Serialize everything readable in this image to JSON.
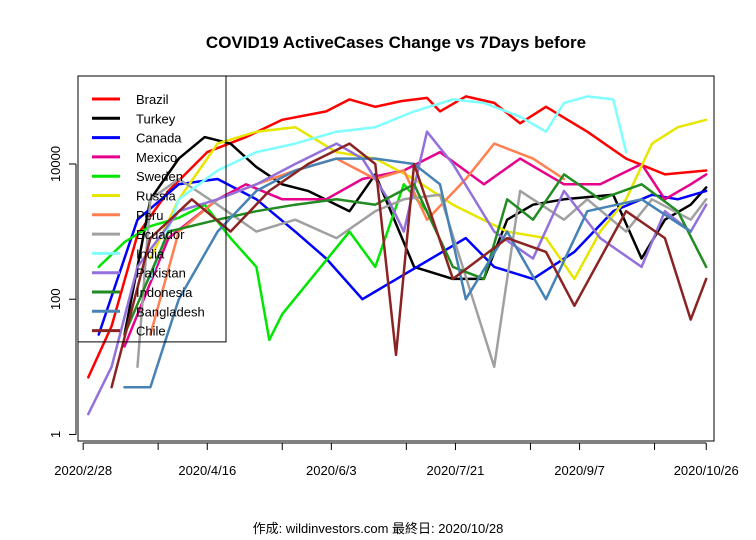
{
  "chart_data": {
    "type": "line",
    "title": "COVID19 ActiveCases Change vs 7Days before",
    "xlabel": "",
    "ylabel": "",
    "y_scale": "log",
    "ylim": [
      0.8,
      200000
    ],
    "xlim": [
      "2020-02-26",
      "2020-10-29"
    ],
    "x_ticks": [
      "2020-02-28",
      "2020-03-28",
      "2020-04-16",
      "2020-05-15",
      "2020-06-03",
      "2020-07-02",
      "2020-07-21",
      "2020-08-19",
      "2020-09-07",
      "2020-10-06",
      "2020-10-26"
    ],
    "x_tick_labels": [
      "2020/2/28",
      "2020/4/16",
      "2020/6/3",
      "2020/7/21",
      "2020/9/7",
      "2020/10/26"
    ],
    "y_ticks": [
      1,
      100,
      10000
    ],
    "y_tick_labels": [
      "1",
      "100",
      "10000"
    ],
    "grid": false,
    "legend_position": "top-left",
    "series": [
      {
        "name": "Brazil",
        "color": "#ff0000",
        "points": [
          [
            "2020-03-01",
            7
          ],
          [
            "2020-03-10",
            40
          ],
          [
            "2020-03-20",
            900
          ],
          [
            "2020-04-01",
            4000
          ],
          [
            "2020-04-16",
            15000
          ],
          [
            "2020-05-01",
            25000
          ],
          [
            "2020-05-15",
            45000
          ],
          [
            "2020-06-01",
            60000
          ],
          [
            "2020-06-10",
            90000
          ],
          [
            "2020-06-20",
            70000
          ],
          [
            "2020-06-30",
            85000
          ],
          [
            "2020-07-10",
            95000
          ],
          [
            "2020-07-15",
            60000
          ],
          [
            "2020-07-25",
            100000
          ],
          [
            "2020-08-05",
            80000
          ],
          [
            "2020-08-15",
            40000
          ],
          [
            "2020-08-25",
            70000
          ],
          [
            "2020-09-10",
            30000
          ],
          [
            "2020-09-25",
            12000
          ],
          [
            "2020-10-10",
            7000
          ],
          [
            "2020-10-26",
            8000
          ]
        ]
      },
      {
        "name": "Turkey",
        "color": "#000000",
        "points": [
          [
            "2020-03-15",
            30
          ],
          [
            "2020-03-25",
            3000
          ],
          [
            "2020-04-05",
            12000
          ],
          [
            "2020-04-15",
            25000
          ],
          [
            "2020-04-25",
            20000
          ],
          [
            "2020-05-05",
            9000
          ],
          [
            "2020-05-15",
            5000
          ],
          [
            "2020-05-25",
            4000
          ],
          [
            "2020-06-10",
            2000
          ],
          [
            "2020-06-20",
            7000
          ],
          [
            "2020-07-05",
            300
          ],
          [
            "2020-07-20",
            200
          ],
          [
            "2020-08-01",
            200
          ],
          [
            "2020-08-10",
            1500
          ],
          [
            "2020-08-20",
            2500
          ],
          [
            "2020-09-01",
            3000
          ],
          [
            "2020-09-20",
            3500
          ],
          [
            "2020-10-01",
            400
          ],
          [
            "2020-10-10",
            1500
          ],
          [
            "2020-10-20",
            2500
          ],
          [
            "2020-10-26",
            4500
          ]
        ]
      },
      {
        "name": "Canada",
        "color": "#0000ff",
        "points": [
          [
            "2020-03-05",
            30
          ],
          [
            "2020-03-20",
            1500
          ],
          [
            "2020-04-05",
            5000
          ],
          [
            "2020-04-20",
            6000
          ],
          [
            "2020-05-05",
            3000
          ],
          [
            "2020-05-20",
            1000
          ],
          [
            "2020-06-01",
            400
          ],
          [
            "2020-06-15",
            100
          ],
          [
            "2020-07-25",
            800
          ],
          [
            "2020-08-05",
            300
          ],
          [
            "2020-08-20",
            200
          ],
          [
            "2020-09-05",
            500
          ],
          [
            "2020-09-20",
            2000
          ],
          [
            "2020-10-05",
            3500
          ],
          [
            "2020-10-15",
            3000
          ],
          [
            "2020-10-26",
            4000
          ]
        ]
      },
      {
        "name": "Mexico",
        "color": "#e6008c",
        "points": [
          [
            "2020-03-15",
            20
          ],
          [
            "2020-04-01",
            800
          ],
          [
            "2020-04-20",
            3000
          ],
          [
            "2020-05-01",
            5000
          ],
          [
            "2020-05-15",
            3000
          ],
          [
            "2020-06-01",
            3000
          ],
          [
            "2020-06-15",
            6000
          ],
          [
            "2020-07-01",
            8000
          ],
          [
            "2020-07-15",
            15000
          ],
          [
            "2020-08-01",
            5000
          ],
          [
            "2020-08-15",
            12000
          ],
          [
            "2020-09-01",
            5000
          ],
          [
            "2020-09-15",
            5000
          ],
          [
            "2020-10-01",
            10000
          ],
          [
            "2020-10-10",
            3000
          ],
          [
            "2020-10-20",
            5000
          ],
          [
            "2020-10-26",
            7000
          ]
        ]
      },
      {
        "name": "Sweden",
        "color": "#00e600",
        "points": [
          [
            "2020-03-05",
            300
          ],
          [
            "2020-03-15",
            700
          ],
          [
            "2020-03-25",
            1200
          ],
          [
            "2020-04-05",
            1600
          ],
          [
            "2020-04-15",
            2500
          ],
          [
            "2020-04-25",
            800
          ],
          [
            "2020-05-05",
            300
          ],
          [
            "2020-05-10",
            25
          ],
          [
            "2020-05-15",
            60
          ],
          [
            "2020-06-10",
            1000
          ],
          [
            "2020-06-20",
            300
          ],
          [
            "2020-07-01",
            5000
          ],
          [
            "2020-07-10",
            2000
          ]
        ]
      },
      {
        "name": "Russia",
        "color": "#e6e600",
        "points": [
          [
            "2020-03-25",
            400
          ],
          [
            "2020-04-05",
            3000
          ],
          [
            "2020-04-20",
            20000
          ],
          [
            "2020-05-05",
            30000
          ],
          [
            "2020-05-20",
            35000
          ],
          [
            "2020-06-05",
            15000
          ],
          [
            "2020-06-20",
            12000
          ],
          [
            "2020-07-05",
            6000
          ],
          [
            "2020-07-20",
            2500
          ],
          [
            "2020-08-10",
            1000
          ],
          [
            "2020-08-25",
            800
          ],
          [
            "2020-09-05",
            200
          ],
          [
            "2020-09-15",
            1000
          ],
          [
            "2020-09-25",
            3000
          ],
          [
            "2020-10-05",
            20000
          ],
          [
            "2020-10-15",
            35000
          ],
          [
            "2020-10-26",
            45000
          ]
        ]
      },
      {
        "name": "Peru",
        "color": "#ff7f50",
        "points": [
          [
            "2020-03-25",
            30
          ],
          [
            "2020-04-05",
            1000
          ],
          [
            "2020-04-20",
            3000
          ],
          [
            "2020-05-05",
            5000
          ],
          [
            "2020-05-20",
            8000
          ],
          [
            "2020-06-05",
            12000
          ],
          [
            "2020-06-20",
            6000
          ],
          [
            "2020-07-01",
            8000
          ],
          [
            "2020-07-10",
            1500
          ],
          [
            "2020-07-25",
            6000
          ],
          [
            "2020-08-05",
            20000
          ],
          [
            "2020-08-20",
            12000
          ],
          [
            "2020-09-01",
            6000
          ]
        ]
      },
      {
        "name": "Ecuador",
        "color": "#a0a0a0",
        "points": [
          [
            "2020-03-20",
            10
          ],
          [
            "2020-03-25",
            3000
          ],
          [
            "2020-04-05",
            6000
          ],
          [
            "2020-04-20",
            2500
          ],
          [
            "2020-05-05",
            1000
          ],
          [
            "2020-05-20",
            1500
          ],
          [
            "2020-06-05",
            800
          ],
          [
            "2020-06-20",
            2000
          ],
          [
            "2020-07-01",
            3000
          ],
          [
            "2020-07-15",
            3500
          ],
          [
            "2020-08-05",
            10
          ],
          [
            "2020-08-15",
            4000
          ],
          [
            "2020-09-01",
            1500
          ],
          [
            "2020-09-10",
            3000
          ],
          [
            "2020-09-25",
            1000
          ],
          [
            "2020-10-05",
            3000
          ],
          [
            "2020-10-20",
            1500
          ],
          [
            "2020-10-26",
            3000
          ]
        ]
      },
      {
        "name": "India",
        "color": "#80ffff",
        "points": [
          [
            "2020-03-25",
            200
          ],
          [
            "2020-04-05",
            3000
          ],
          [
            "2020-04-20",
            8000
          ],
          [
            "2020-05-05",
            15000
          ],
          [
            "2020-05-20",
            20000
          ],
          [
            "2020-06-05",
            30000
          ],
          [
            "2020-06-20",
            35000
          ],
          [
            "2020-07-05",
            60000
          ],
          [
            "2020-07-20",
            90000
          ],
          [
            "2020-08-01",
            80000
          ],
          [
            "2020-08-15",
            50000
          ],
          [
            "2020-08-25",
            30000
          ],
          [
            "2020-09-01",
            80000
          ],
          [
            "2020-09-10",
            100000
          ],
          [
            "2020-09-20",
            90000
          ],
          [
            "2020-09-25",
            15000
          ]
        ]
      },
      {
        "name": "Pakistan",
        "color": "#9370db",
        "points": [
          [
            "2020-03-01",
            2
          ],
          [
            "2020-03-10",
            10
          ],
          [
            "2020-03-20",
            300
          ],
          [
            "2020-04-05",
            2000
          ],
          [
            "2020-04-20",
            3000
          ],
          [
            "2020-05-05",
            5000
          ],
          [
            "2020-05-20",
            10000
          ],
          [
            "2020-06-05",
            20000
          ],
          [
            "2020-06-15",
            12000
          ],
          [
            "2020-06-25",
            3000
          ],
          [
            "2020-07-01",
            1000
          ],
          [
            "2020-07-10",
            30000
          ],
          [
            "2020-07-20",
            10000
          ],
          [
            "2020-08-05",
            1000
          ],
          [
            "2020-08-20",
            400
          ],
          [
            "2020-09-01",
            4000
          ],
          [
            "2020-09-15",
            800
          ],
          [
            "2020-10-01",
            300
          ],
          [
            "2020-10-10",
            2000
          ],
          [
            "2020-10-20",
            1000
          ],
          [
            "2020-10-26",
            2500
          ]
        ]
      },
      {
        "name": "Indonesia",
        "color": "#228b22",
        "points": [
          [
            "2020-03-15",
            30
          ],
          [
            "2020-04-01",
            1000
          ],
          [
            "2020-04-20",
            1500
          ],
          [
            "2020-05-05",
            2000
          ],
          [
            "2020-05-20",
            2500
          ],
          [
            "2020-06-05",
            3000
          ],
          [
            "2020-06-20",
            2500
          ],
          [
            "2020-07-05",
            5000
          ],
          [
            "2020-07-20",
            300
          ],
          [
            "2020-08-01",
            200
          ],
          [
            "2020-08-10",
            3000
          ],
          [
            "2020-08-20",
            1500
          ],
          [
            "2020-09-01",
            7000
          ],
          [
            "2020-09-15",
            3000
          ],
          [
            "2020-10-01",
            5000
          ],
          [
            "2020-10-15",
            2000
          ],
          [
            "2020-10-26",
            300
          ]
        ]
      },
      {
        "name": "Bangladesh",
        "color": "#4682b4",
        "points": [
          [
            "2020-03-15",
            5
          ],
          [
            "2020-03-25",
            5
          ],
          [
            "2020-04-05",
            100
          ],
          [
            "2020-04-20",
            1000
          ],
          [
            "2020-05-05",
            4000
          ],
          [
            "2020-05-20",
            8000
          ],
          [
            "2020-06-05",
            12000
          ],
          [
            "2020-06-20",
            12000
          ],
          [
            "2020-07-05",
            10000
          ],
          [
            "2020-07-15",
            5000
          ],
          [
            "2020-07-25",
            100
          ],
          [
            "2020-08-10",
            1000
          ],
          [
            "2020-08-25",
            100
          ],
          [
            "2020-09-10",
            2000
          ],
          [
            "2020-10-01",
            3000
          ],
          [
            "2020-10-20",
            1000
          ]
        ]
      },
      {
        "name": "Chile",
        "color": "#8b2323",
        "points": [
          [
            "2020-03-10",
            5
          ],
          [
            "2020-03-25",
            800
          ],
          [
            "2020-04-10",
            3000
          ],
          [
            "2020-04-25",
            1000
          ],
          [
            "2020-05-10",
            4000
          ],
          [
            "2020-05-25",
            10000
          ],
          [
            "2020-06-10",
            20000
          ],
          [
            "2020-06-20",
            10000
          ],
          [
            "2020-06-28",
            15
          ],
          [
            "2020-07-05",
            10000
          ],
          [
            "2020-07-20",
            200
          ],
          [
            "2020-08-10",
            800
          ],
          [
            "2020-08-25",
            500
          ],
          [
            "2020-09-05",
            80
          ],
          [
            "2020-09-25",
            2000
          ],
          [
            "2020-10-10",
            800
          ],
          [
            "2020-10-20",
            50
          ],
          [
            "2020-10-26",
            200
          ]
        ]
      }
    ]
  },
  "footer": {
    "text": "作成: wildinvestors.com 最終日: 2020/10/28"
  }
}
